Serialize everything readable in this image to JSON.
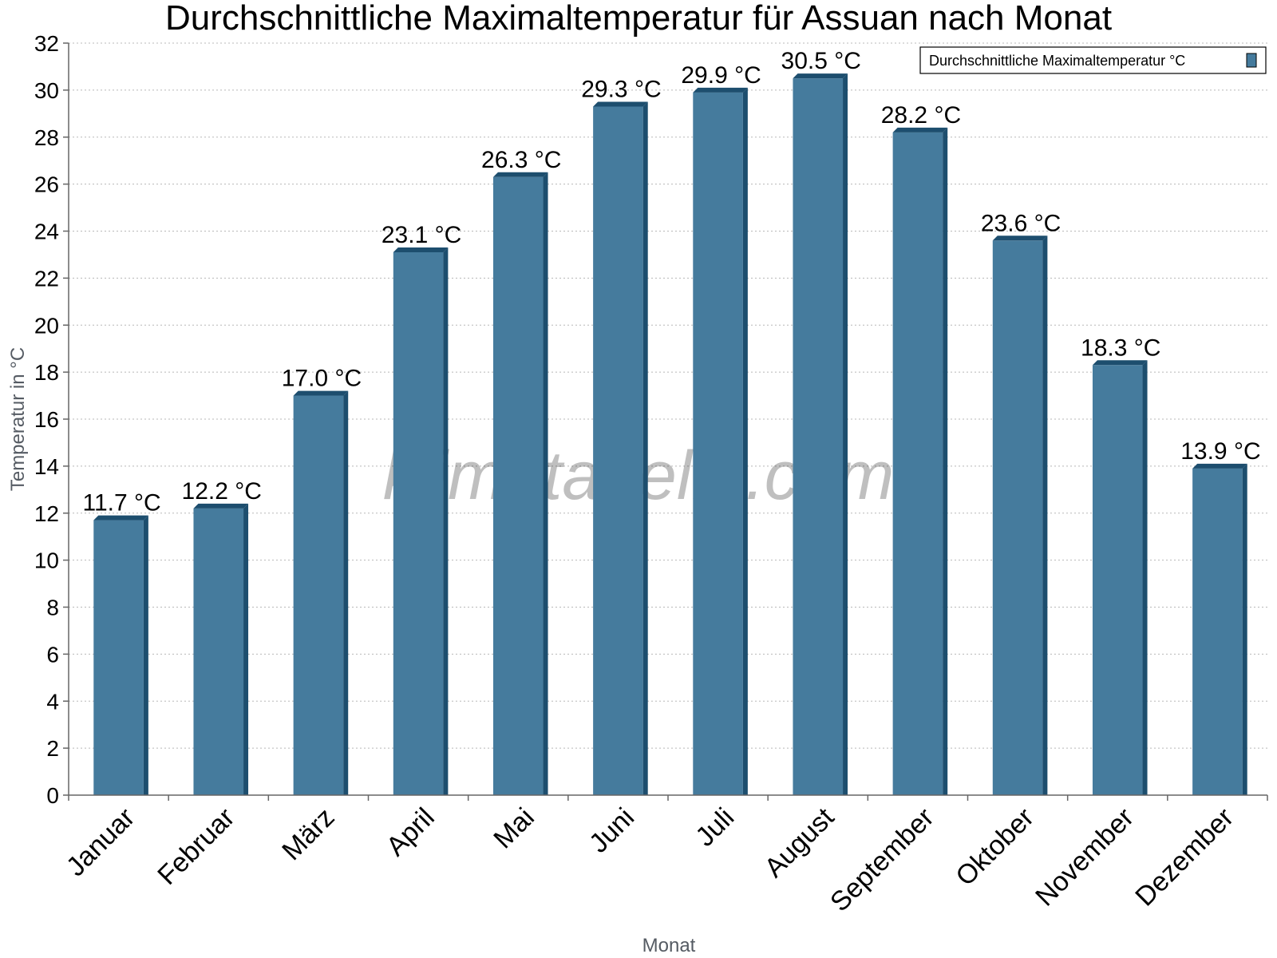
{
  "chart_data": {
    "type": "bar",
    "title": "Durchschnittliche Maximaltemperatur für Assuan nach Monat",
    "xlabel": "Monat",
    "ylabel": "Temperatur in °C",
    "categories": [
      "Januar",
      "Februar",
      "März",
      "April",
      "Mai",
      "Juni",
      "Juli",
      "August",
      "September",
      "Oktober",
      "November",
      "Dezember"
    ],
    "series": [
      {
        "name": "Durchschnittliche Maximaltemperatur °C",
        "values": [
          11.7,
          12.2,
          17.0,
          23.1,
          26.3,
          29.3,
          29.9,
          30.5,
          28.2,
          23.6,
          18.3,
          13.9
        ],
        "labels": [
          "11.7 °C",
          "12.2 °C",
          "17.0 °C",
          "23.1 °C",
          "26.3 °C",
          "29.3 °C",
          "29.9 °C",
          "30.5 °C",
          "28.2 °C",
          "23.6 °C",
          "18.3 °C",
          "13.9 °C"
        ],
        "color": "#457b9d",
        "edge_color": "#1d4e6e"
      }
    ],
    "ylim": [
      0,
      32
    ],
    "yticks": [
      "0",
      "2",
      "4",
      "6",
      "8",
      "10",
      "12",
      "14",
      "16",
      "18",
      "20",
      "22",
      "24",
      "26",
      "28",
      "30",
      "32"
    ],
    "grid": true,
    "legend_position": "top-right",
    "watermark": "klimatabelle.com"
  }
}
